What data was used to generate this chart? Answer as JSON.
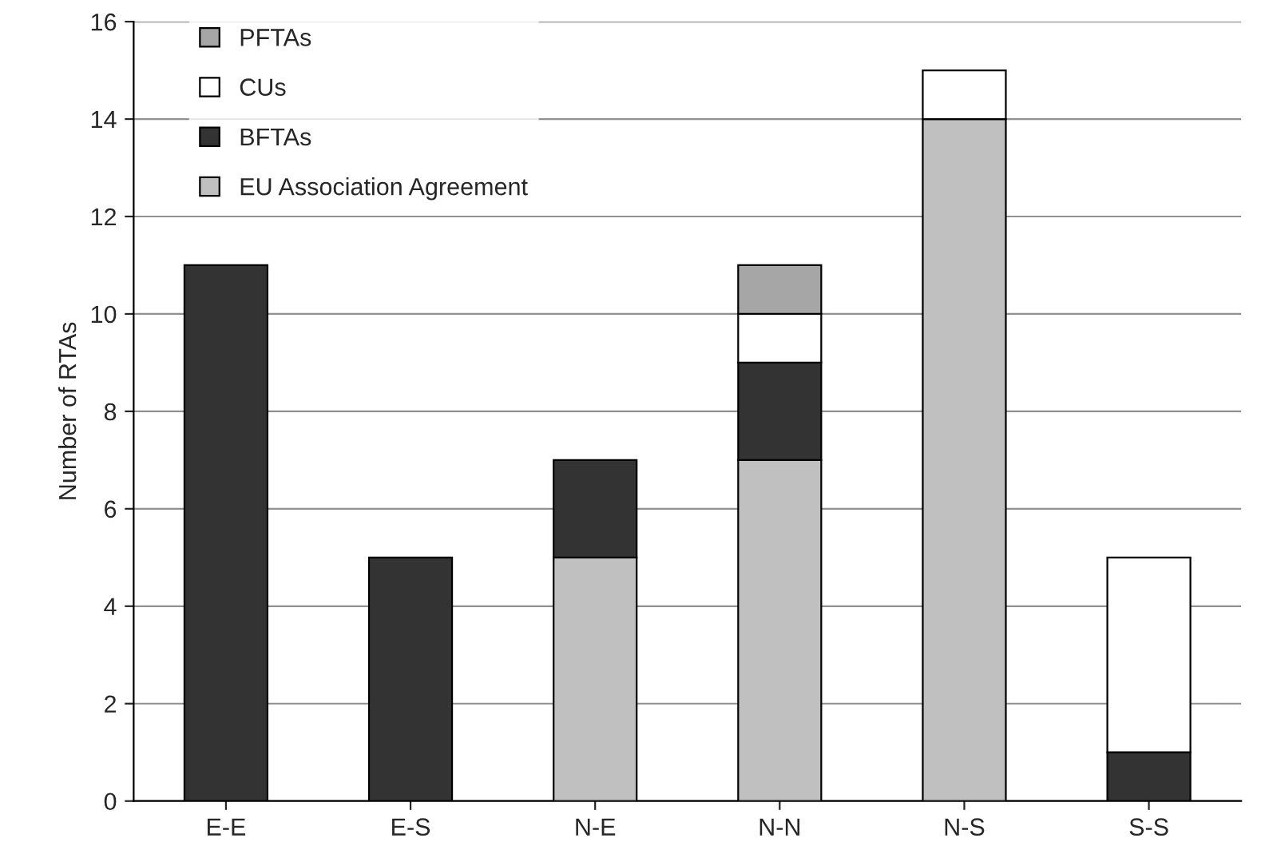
{
  "chart_data": {
    "type": "bar",
    "stacked": true,
    "ylabel": "Number of RTAs",
    "categories": [
      "E-E",
      "E-S",
      "N-E",
      "N-N",
      "N-S",
      "S-S"
    ],
    "series": [
      {
        "name": "EU Association Agreement",
        "color": "#c0c0c0",
        "values": [
          null,
          null,
          5,
          7,
          14,
          null
        ]
      },
      {
        "name": "BFTAs",
        "color": "#333333",
        "values": [
          11,
          5,
          2,
          2,
          null,
          1
        ]
      },
      {
        "name": "CUs",
        "color": "#ffffff",
        "values": [
          null,
          null,
          null,
          1,
          1,
          4
        ]
      },
      {
        "name": "PFTAs",
        "color": "#a6a6a6",
        "values": [
          null,
          null,
          null,
          1,
          null,
          null
        ]
      }
    ],
    "ylim": [
      0,
      16
    ],
    "yticks": [
      0,
      2,
      4,
      6,
      8,
      10,
      12,
      14,
      16
    ],
    "grid": "y",
    "legend": "top left"
  }
}
